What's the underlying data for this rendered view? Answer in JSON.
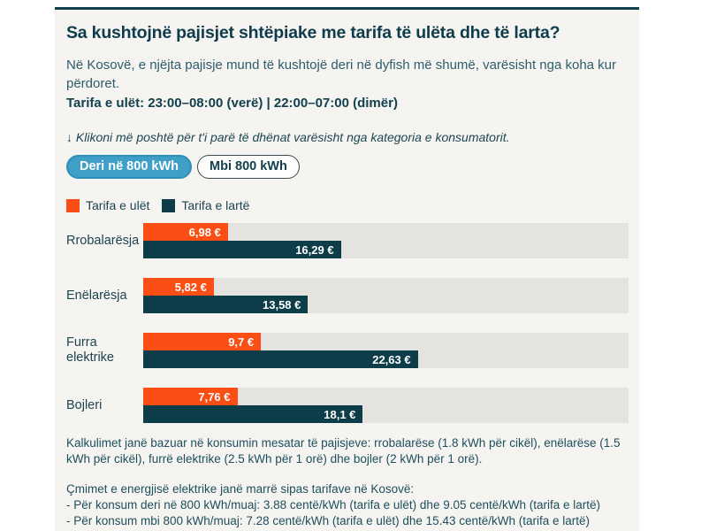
{
  "header": {
    "title": "Sa kushtojnë pajisjet shtëpiake me tarifa të ulëta dhe të larta?",
    "subtitle": "Në Kosovë, e njëjta pajisje mund të kushtojë deri në dyfish më shumë, varësisht nga koha kur përdoret.",
    "tariff_hours": "Tarifa e ulët: 23:00–08:00 (verë) | 22:00–07:00 (dimër)",
    "instruction": "↓ Klikoni më poshtë për t'i parë të dhënat varësisht nga kategoria e konsumatorit."
  },
  "toggle": {
    "options": [
      {
        "label": "Deri në 800 kWh",
        "active": true
      },
      {
        "label": "Mbi 800 kWh",
        "active": false
      }
    ],
    "active_bg": "#3f9fc7",
    "active_border": "#2e8fb8"
  },
  "legend": [
    {
      "label": "Tarifa e ulët",
      "color": "#fa4e14"
    },
    {
      "label": "Tarifa e lartë",
      "color": "#0d3d49"
    }
  ],
  "chart_data": {
    "type": "bar",
    "orientation": "horizontal",
    "title": "Sa kushtojnë pajisjet shtëpiake me tarifa të ulëta dhe të larta?",
    "categories": [
      "Rrobalarësja",
      "Enëlarësja",
      "Furra elektrike",
      "Bojleri"
    ],
    "series": [
      {
        "name": "Tarifa e ulët",
        "color": "#fa4e14",
        "values": [
          6.98,
          5.82,
          9.7,
          7.76
        ],
        "value_labels": [
          "6,98 €",
          "5,82 €",
          "9,7 €",
          "7,76 €"
        ]
      },
      {
        "name": "Tarifa e lartë",
        "color": "#0d3d49",
        "values": [
          16.29,
          13.58,
          22.63,
          18.1
        ],
        "value_labels": [
          "16,29 €",
          "13,58 €",
          "22,63 €",
          "18,1 €"
        ]
      }
    ],
    "xlim": [
      0,
      40
    ],
    "unit": "€",
    "grid": false,
    "legend_position": "top-left",
    "track_color": "#e4e3df"
  },
  "footnotes": {
    "consumption": "Kalkulimet janë bazuar në konsumin mesatar të pajisjeve: rrobalarëse (1.8 kWh për cikël), enëlarëse (1.5 kWh për cikël), furrë elektrike (2.5 kWh për 1 orë) dhe bojler (2 kWh për 1 orë).",
    "prices_intro": "Çmimet e energjisë elektrike janë marrë sipas tarifave në Kosovë:",
    "prices_under": "- Për konsum deri në 800 kWh/muaj: 3.88 centë/kWh (tarifa e ulët) dhe 9.05 centë/kWh (tarifa e lartë)",
    "prices_over": "- Për konsum mbi 800 kWh/muaj: 7.28 centë/kWh (tarifa e ulët) dhe 15.43 centë/kWh (tarifa e lartë)"
  }
}
